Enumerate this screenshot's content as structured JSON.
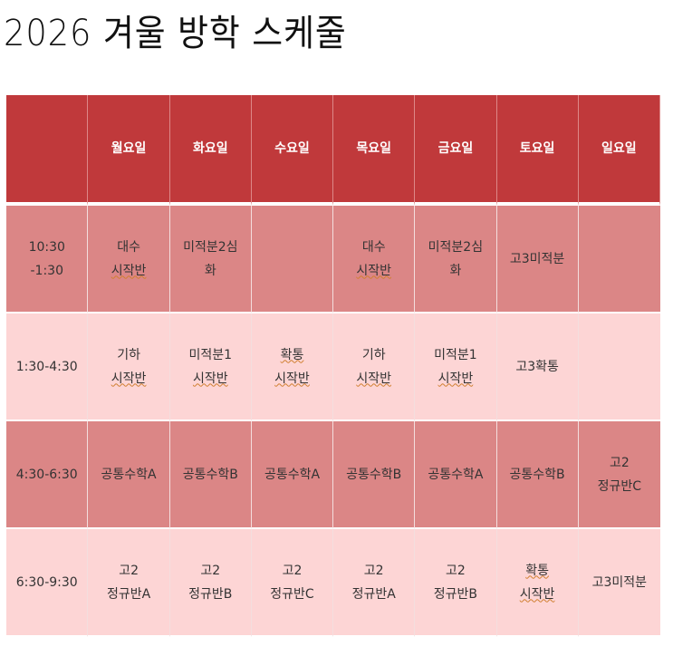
{
  "title": "2026 겨울 방학 스케줄",
  "days": [
    "",
    "월요일",
    "화요일",
    "수요일",
    "목요일",
    "금요일",
    "토요일",
    "일요일"
  ],
  "rows": [
    {
      "time": [
        "10:30",
        "-1:30"
      ],
      "cells": [
        [
          "대수",
          "시작반"
        ],
        [
          "미적분2심",
          "화"
        ],
        [],
        [
          "대수",
          "시작반"
        ],
        [
          "미적분2심",
          "화"
        ],
        [
          "고3미적분"
        ],
        []
      ],
      "tone": "dark"
    },
    {
      "time": [
        "1:30-4:30"
      ],
      "cells": [
        [
          "기하",
          "시작반"
        ],
        [
          "미적분1",
          "시작반"
        ],
        [
          "확통",
          "시작반"
        ],
        [
          "기하",
          "시작반"
        ],
        [
          "미적분1",
          "시작반"
        ],
        [
          "고3확통"
        ],
        []
      ],
      "tone": "light"
    },
    {
      "time": [
        "4:30-6:30"
      ],
      "cells": [
        [
          "공통수학A"
        ],
        [
          "공통수학B"
        ],
        [
          "공통수학A"
        ],
        [
          "공통수학B"
        ],
        [
          "공통수학A"
        ],
        [
          "공통수학B"
        ],
        [
          "고2",
          "정규반C"
        ]
      ],
      "tone": "dark"
    },
    {
      "time": [
        "6:30-9:30"
      ],
      "cells": [
        [
          "고2",
          "정규반A"
        ],
        [
          "고2",
          "정규반B"
        ],
        [
          "고2",
          "정규반C"
        ],
        [
          "고2",
          "정규반A"
        ],
        [
          "고2",
          "정규반B"
        ],
        [
          "확통",
          "시작반"
        ],
        [
          "고3미적분"
        ]
      ],
      "tone": "light"
    }
  ],
  "colors": {
    "header": "#c0393b",
    "dark": "#db8686",
    "light": "#fdd5d5"
  }
}
